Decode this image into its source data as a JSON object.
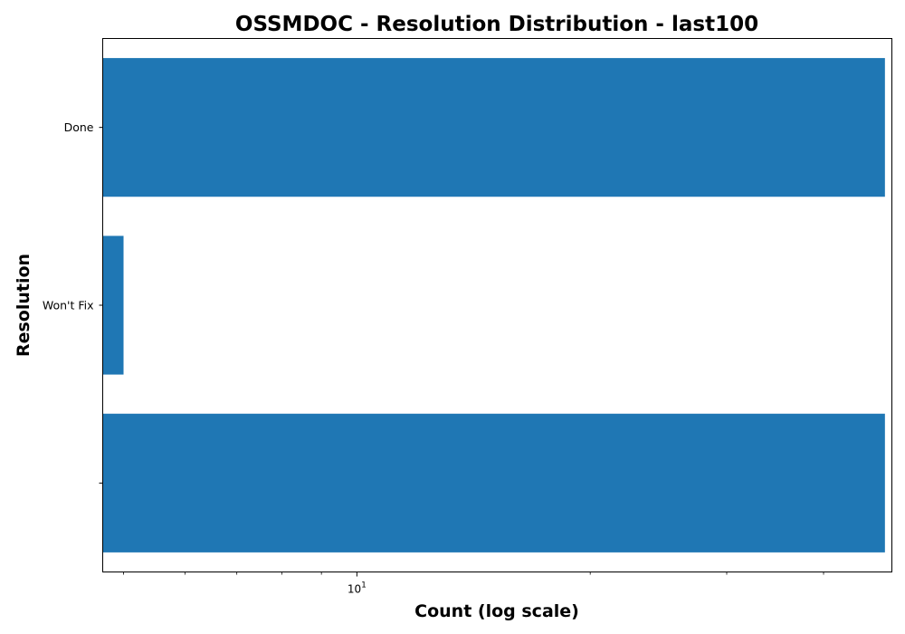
{
  "chart_data": {
    "type": "bar",
    "orientation": "horizontal",
    "title": "OSSMDOC - Resolution Distribution - last100",
    "xlabel": "Count (log scale)",
    "ylabel": "Resolution",
    "x_scale": "log",
    "xlim": [
      4.7,
      49
    ],
    "x_major_ticks": [
      10
    ],
    "x_major_tick_labels": [
      "10^1"
    ],
    "x_minor_ticks": [
      5,
      6,
      7,
      8,
      9,
      20,
      30,
      40
    ],
    "categories": [
      "Done",
      "Won't Fix",
      ""
    ],
    "values": [
      48,
      5,
      48
    ],
    "bar_color": "#1f77b4",
    "grid": false,
    "legend": "none"
  }
}
